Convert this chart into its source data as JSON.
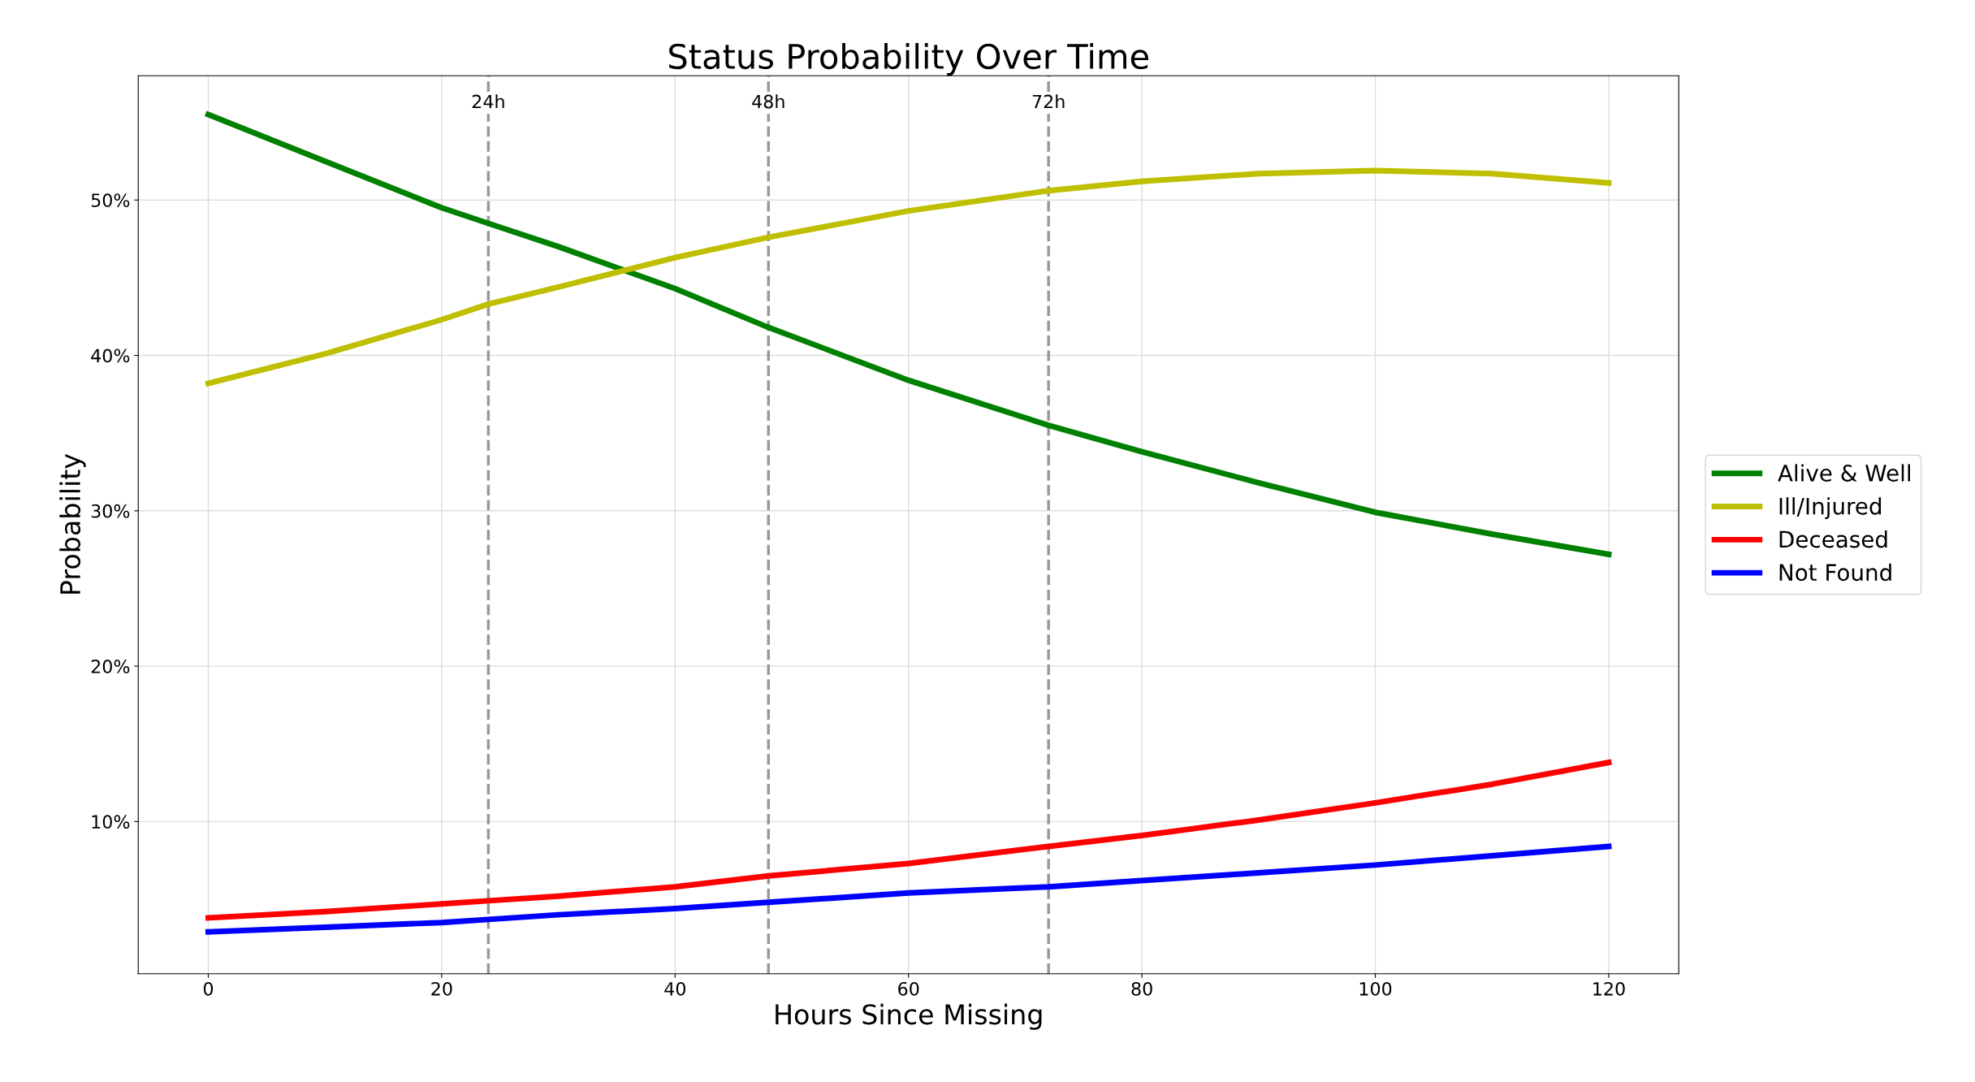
{
  "chart_data": {
    "type": "line",
    "title": "Status Probability Over Time",
    "xlabel": "Hours Since Missing",
    "ylabel": "Probability",
    "x": [
      0,
      10,
      20,
      24,
      30,
      40,
      48,
      60,
      72,
      80,
      90,
      100,
      110,
      120
    ],
    "series": [
      {
        "name": "Alive & Well",
        "color": "#008000",
        "values": [
          55.5,
          52.5,
          49.5,
          48.5,
          47.0,
          44.3,
          41.8,
          38.4,
          35.5,
          33.8,
          31.8,
          29.9,
          28.5,
          27.2
        ]
      },
      {
        "name": "Ill/Injured",
        "color": "#bfbf00",
        "values": [
          38.2,
          40.1,
          42.3,
          43.3,
          44.4,
          46.3,
          47.6,
          49.3,
          50.6,
          51.2,
          51.7,
          51.9,
          51.7,
          51.1
        ]
      },
      {
        "name": "Deceased",
        "color": "#ff0000",
        "values": [
          3.8,
          4.2,
          4.7,
          4.9,
          5.2,
          5.8,
          6.5,
          7.3,
          8.4,
          9.1,
          10.1,
          11.2,
          12.4,
          13.8
        ]
      },
      {
        "name": "Not Found",
        "color": "#0000ff",
        "values": [
          2.9,
          3.2,
          3.5,
          3.7,
          4.0,
          4.4,
          4.8,
          5.4,
          5.8,
          6.2,
          6.7,
          7.2,
          7.8,
          8.4
        ]
      }
    ],
    "xlim": [
      -6,
      126
    ],
    "xticks": [
      0,
      20,
      40,
      60,
      80,
      100,
      120
    ],
    "ylim": [
      0.2,
      58
    ],
    "yticks": [
      {
        "value": 10,
        "label": "10%"
      },
      {
        "value": 20,
        "label": "20%"
      },
      {
        "value": 30,
        "label": "30%"
      },
      {
        "value": 40,
        "label": "40%"
      },
      {
        "value": 50,
        "label": "50%"
      }
    ],
    "ref_lines": [
      {
        "axis": "x",
        "value": 24,
        "label": "24h",
        "color": "#999999",
        "line_style": "dashed"
      },
      {
        "axis": "x",
        "value": 48,
        "label": "48h",
        "color": "#999999",
        "line_style": "dashed"
      },
      {
        "axis": "x",
        "value": 72,
        "label": "72h",
        "color": "#999999",
        "line_style": "dashed"
      }
    ],
    "grid": true,
    "legend": "right",
    "line_style": "solid",
    "marker": "none"
  }
}
